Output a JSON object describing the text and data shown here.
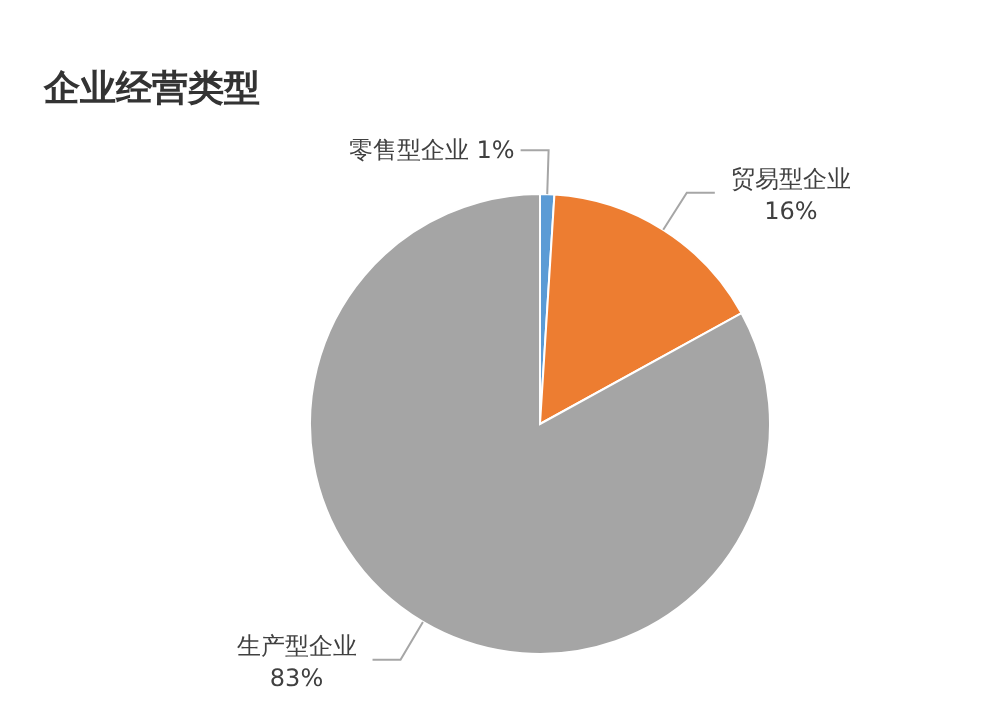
{
  "chart_data": {
    "type": "pie",
    "title": "企业经营类型",
    "categories": [
      "零售型企业",
      "贸易型企业",
      "生产型企业"
    ],
    "values": [
      1,
      16,
      83
    ],
    "colors": [
      "#5b9bd5",
      "#ed7d31",
      "#a5a5a5"
    ],
    "value_labels": [
      "1%",
      "16%",
      "83%"
    ]
  }
}
